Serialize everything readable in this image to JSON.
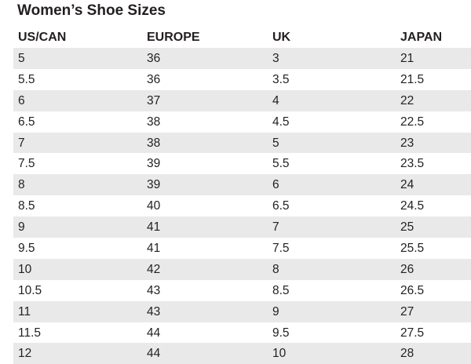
{
  "header": {
    "title": "Women’s Shoe Sizes"
  },
  "table": {
    "columns": [
      "US/CAN",
      "EUROPE",
      "UK",
      "JAPAN"
    ],
    "rows": [
      [
        "5",
        "36",
        "3",
        "21"
      ],
      [
        "5.5",
        "36",
        "3.5",
        "21.5"
      ],
      [
        "6",
        "37",
        "4",
        "22"
      ],
      [
        "6.5",
        "38",
        "4.5",
        "22.5"
      ],
      [
        "7",
        "38",
        "5",
        "23"
      ],
      [
        "7.5",
        "39",
        "5.5",
        "23.5"
      ],
      [
        "8",
        "39",
        "6",
        "24"
      ],
      [
        "8.5",
        "40",
        "6.5",
        "24.5"
      ],
      [
        "9",
        "41",
        "7",
        "25"
      ],
      [
        "9.5",
        "41",
        "7.5",
        "25.5"
      ],
      [
        "10",
        "42",
        "8",
        "26"
      ],
      [
        "10.5",
        "43",
        "8.5",
        "26.5"
      ],
      [
        "11",
        "43",
        "9",
        "27"
      ],
      [
        "11.5",
        "44",
        "9.5",
        "27.5"
      ],
      [
        "12",
        "44",
        "10",
        "28"
      ]
    ]
  }
}
